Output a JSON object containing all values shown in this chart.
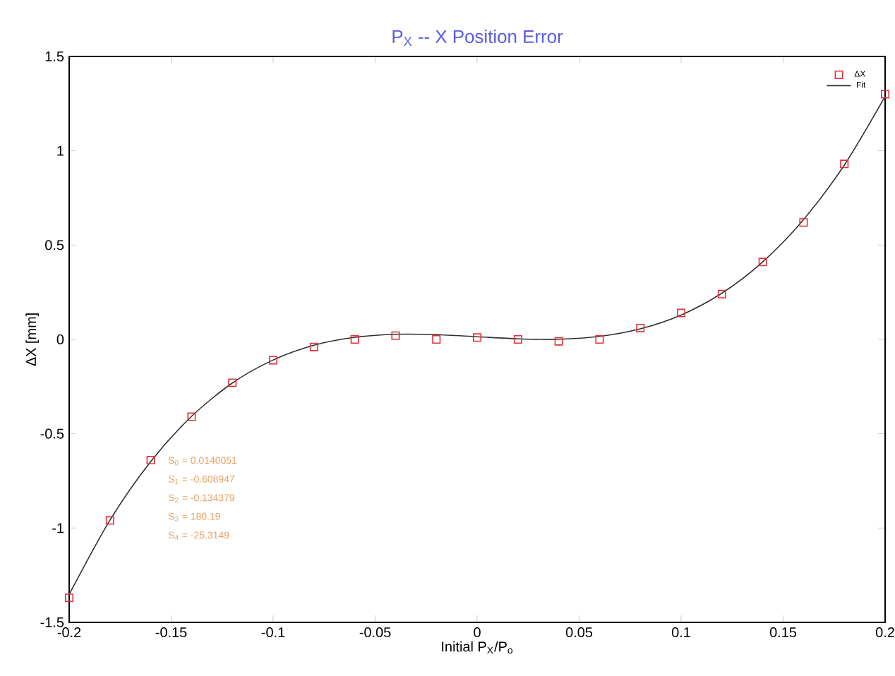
{
  "chart_data": {
    "type": "scatter",
    "title": "P$_{X}$ -- X Position Error",
    "xlabel": "Initial P$_{X}$/P$_{o}$",
    "ylabel": "ΔX [mm]",
    "xlim": [
      -0.2,
      0.2
    ],
    "ylim": [
      -1.5,
      1.5
    ],
    "xticks": [
      -0.2,
      -0.15,
      -0.1,
      -0.05,
      0,
      0.05,
      0.1,
      0.15,
      0.2
    ],
    "yticks": [
      -1.5,
      -1,
      -0.5,
      0,
      0.5,
      1,
      1.5
    ],
    "grid": false,
    "legend": "top right",
    "marker": "square",
    "series": [
      {
        "name": "ΔX",
        "color": "#e0303a",
        "x": [
          -0.2,
          -0.18,
          -0.16,
          -0.14,
          -0.12,
          -0.1,
          -0.08,
          -0.06,
          -0.04,
          -0.02,
          0,
          0.02,
          0.04,
          0.06,
          0.08,
          0.1,
          0.12,
          0.14,
          0.16,
          0.18,
          0.2
        ],
        "values": [
          -1.37,
          -0.96,
          -0.64,
          -0.41,
          -0.23,
          -0.11,
          -0.04,
          0.0,
          0.02,
          0.0,
          0.01,
          0.0,
          -0.01,
          0.0,
          0.06,
          0.14,
          0.24,
          0.41,
          0.62,
          0.93,
          1.3
        ]
      },
      {
        "name": "Fit",
        "type": "line",
        "color": "#303030",
        "line_style": "solid",
        "marker": "none",
        "x": [
          -0.2,
          -0.18,
          -0.16,
          -0.14,
          -0.12,
          -0.1,
          -0.08,
          -0.06,
          -0.04,
          -0.02,
          0,
          0.02,
          0.04,
          0.06,
          0.08,
          0.1,
          0.12,
          0.14,
          0.16,
          0.18,
          0.2
        ],
        "values": [
          -1.352,
          -0.958,
          -0.647,
          -0.408,
          -0.231,
          -0.109,
          -0.031,
          0.011,
          0.027,
          0.025,
          0.014,
          0.003,
          0.001,
          0.016,
          0.056,
          0.129,
          0.245,
          0.411,
          0.635,
          0.924,
          1.288
        ]
      }
    ],
    "annotations": [
      "S$_{0}$ = 0.0140051",
      "S$_{1}$ = -0.608947",
      "S$_{2}$ = -0.134379",
      "S$_{3}$ = 180.19",
      "S$_{4}$ = -25.3149"
    ]
  }
}
